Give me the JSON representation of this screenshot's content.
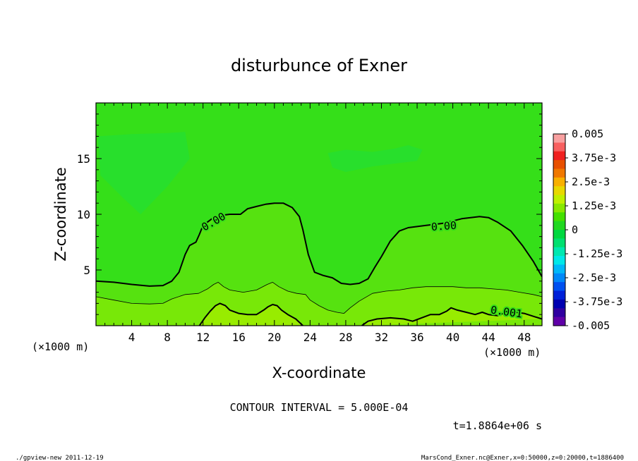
{
  "chart_data": {
    "type": "heatmap",
    "title": "disturbunce of Exner",
    "xlabel": "X-coordinate",
    "ylabel": "Z-coordinate",
    "x_unit_left": "(×1000 m)",
    "x_unit_right": "(×1000 m)",
    "xlim": [
      0,
      50
    ],
    "ylim": [
      0,
      20
    ],
    "x_ticks": [
      4,
      8,
      12,
      16,
      20,
      24,
      28,
      32,
      36,
      40,
      44,
      48
    ],
    "x_tick_labels": [
      "4",
      "8",
      "12",
      "16",
      "20",
      "24",
      "28",
      "32",
      "36",
      "40",
      "44",
      "48"
    ],
    "y_ticks": [
      5,
      10,
      15
    ],
    "y_tick_labels": [
      "5",
      "10",
      "15"
    ],
    "contour_labels": [
      {
        "text": "0.00",
        "x": 13.2,
        "z": 9.3,
        "angle": -30
      },
      {
        "text": "0.00",
        "x": 39,
        "z": 8.9,
        "angle": -4
      },
      {
        "text": "0.001",
        "x": 46,
        "z": 1.2,
        "angle": 8
      }
    ],
    "contours": [
      {
        "level": 0.0,
        "width": 2.0,
        "points": [
          [
            0,
            4.0
          ],
          [
            2,
            3.9
          ],
          [
            4,
            3.7
          ],
          [
            6,
            3.55
          ],
          [
            7.5,
            3.6
          ],
          [
            8.5,
            4.0
          ],
          [
            9.3,
            4.8
          ],
          [
            10,
            6.4
          ],
          [
            10.5,
            7.2
          ],
          [
            11.2,
            7.5
          ],
          [
            11.6,
            8.2
          ],
          [
            12,
            9.0
          ],
          [
            13,
            9.6
          ],
          [
            14,
            9.9
          ],
          [
            15,
            10.0
          ],
          [
            16.2,
            10.0
          ],
          [
            17,
            10.5
          ],
          [
            18,
            10.7
          ],
          [
            19,
            10.9
          ],
          [
            20,
            11.0
          ],
          [
            21,
            11.0
          ],
          [
            22,
            10.6
          ],
          [
            22.8,
            9.8
          ],
          [
            23.2,
            8.6
          ],
          [
            23.8,
            6.4
          ],
          [
            24.5,
            4.8
          ],
          [
            25.5,
            4.5
          ],
          [
            26.5,
            4.3
          ],
          [
            27.5,
            3.8
          ],
          [
            28.5,
            3.7
          ],
          [
            29.5,
            3.8
          ],
          [
            30.5,
            4.2
          ],
          [
            31.3,
            5.3
          ],
          [
            32,
            6.2
          ],
          [
            33,
            7.6
          ],
          [
            34,
            8.5
          ],
          [
            35,
            8.8
          ],
          [
            36,
            8.9
          ],
          [
            37,
            9.0
          ],
          [
            38,
            9.1
          ],
          [
            39,
            9.2
          ],
          [
            40,
            9.4
          ],
          [
            41,
            9.6
          ],
          [
            42,
            9.7
          ],
          [
            43,
            9.8
          ],
          [
            44,
            9.7
          ],
          [
            45,
            9.3
          ],
          [
            46.5,
            8.5
          ],
          [
            47.8,
            7.2
          ],
          [
            49,
            5.8
          ],
          [
            50,
            4.4
          ]
        ]
      },
      {
        "level": 0.0005,
        "width": 0.8,
        "points": [
          [
            0,
            2.6
          ],
          [
            2,
            2.3
          ],
          [
            4,
            2.0
          ],
          [
            6,
            1.95
          ],
          [
            7.5,
            2.0
          ],
          [
            8.5,
            2.4
          ],
          [
            10,
            2.8
          ],
          [
            11.5,
            2.9
          ],
          [
            12.5,
            3.3
          ],
          [
            13.2,
            3.7
          ],
          [
            13.7,
            3.9
          ],
          [
            14.3,
            3.5
          ],
          [
            15,
            3.2
          ],
          [
            16.5,
            3.0
          ],
          [
            18,
            3.2
          ],
          [
            19.2,
            3.7
          ],
          [
            19.8,
            3.9
          ],
          [
            20.5,
            3.5
          ],
          [
            21.5,
            3.1
          ],
          [
            22.5,
            2.9
          ],
          [
            23.5,
            2.8
          ],
          [
            24,
            2.3
          ],
          [
            25,
            1.8
          ],
          [
            26,
            1.4
          ],
          [
            27,
            1.2
          ],
          [
            27.8,
            1.1
          ],
          [
            28.5,
            1.6
          ],
          [
            29.5,
            2.2
          ],
          [
            31,
            2.9
          ],
          [
            32.5,
            3.1
          ],
          [
            34,
            3.2
          ],
          [
            35.5,
            3.4
          ],
          [
            37,
            3.5
          ],
          [
            38.5,
            3.5
          ],
          [
            40,
            3.5
          ],
          [
            41.5,
            3.4
          ],
          [
            43,
            3.4
          ],
          [
            44.5,
            3.3
          ],
          [
            46,
            3.2
          ],
          [
            47.5,
            3.0
          ],
          [
            49,
            2.8
          ],
          [
            50,
            2.6
          ]
        ]
      },
      {
        "level": 0.001,
        "width": 2.0,
        "points": [
          [
            11.6,
            0
          ],
          [
            12.2,
            0.7
          ],
          [
            12.8,
            1.3
          ],
          [
            13.4,
            1.8
          ],
          [
            13.9,
            2.0
          ],
          [
            14.5,
            1.8
          ],
          [
            15,
            1.4
          ],
          [
            16,
            1.1
          ],
          [
            17,
            1.0
          ],
          [
            18,
            1.0
          ],
          [
            18.8,
            1.4
          ],
          [
            19.3,
            1.7
          ],
          [
            19.8,
            1.9
          ],
          [
            20.3,
            1.8
          ],
          [
            20.8,
            1.4
          ],
          [
            21.5,
            1.0
          ],
          [
            22.4,
            0.6
          ],
          [
            23.2,
            0
          ]
        ]
      },
      {
        "level": 0.001,
        "width": 2.0,
        "points": [
          [
            29.8,
            0
          ],
          [
            30.5,
            0.4
          ],
          [
            31.5,
            0.6
          ],
          [
            33,
            0.7
          ],
          [
            34.5,
            0.6
          ],
          [
            35.5,
            0.4
          ],
          [
            36.5,
            0.7
          ],
          [
            37.5,
            1.0
          ],
          [
            38.5,
            1.0
          ],
          [
            39.3,
            1.3
          ],
          [
            39.8,
            1.6
          ],
          [
            40.5,
            1.4
          ],
          [
            41.5,
            1.2
          ],
          [
            42.5,
            1.0
          ],
          [
            43.3,
            1.2
          ],
          [
            44,
            1.0
          ],
          [
            45,
            0.9
          ],
          [
            46,
            1.2
          ],
          [
            47,
            1.2
          ],
          [
            48,
            1.1
          ],
          [
            49.2,
            0.8
          ],
          [
            50,
            0.6
          ]
        ]
      }
    ],
    "colorbar": {
      "labels": [
        "0.005",
        "3.75e-3",
        "2.5e-3",
        "1.25e-3",
        "0",
        "-1.25e-3",
        "-2.5e-3",
        "-3.75e-3",
        "-0.005"
      ],
      "colors": [
        "#f8a0a0",
        "#f86060",
        "#f02020",
        "#e85000",
        "#f07800",
        "#f8b000",
        "#e8d800",
        "#c0f000",
        "#88e800",
        "#44e000",
        "#20d820",
        "#00d840",
        "#00e070",
        "#00e8b0",
        "#00e8e8",
        "#00b8f8",
        "#0088f8",
        "#0050f0",
        "#0020d8",
        "#0000b0",
        "#3000a0",
        "#6000a8"
      ],
      "color_min": "#6010a8",
      "color_max": "#f8c0c0"
    },
    "field_colors": {
      "base": "#35df19",
      "slight_negative": "#20e038",
      "slight_positive_1": "#56e210",
      "slight_positive_2": "#78e808",
      "slight_positive_3": "#98ec00"
    }
  },
  "annotations": {
    "contour_interval": "CONTOUR INTERVAL = 5.000E-04",
    "time": "t=1.8864e+06 s",
    "footer_left": "./gpview-new  2011-12-19",
    "footer_right": "MarsCond_Exner.nc@Exner,x=0:50000,z=0:20000,t=1886400"
  }
}
